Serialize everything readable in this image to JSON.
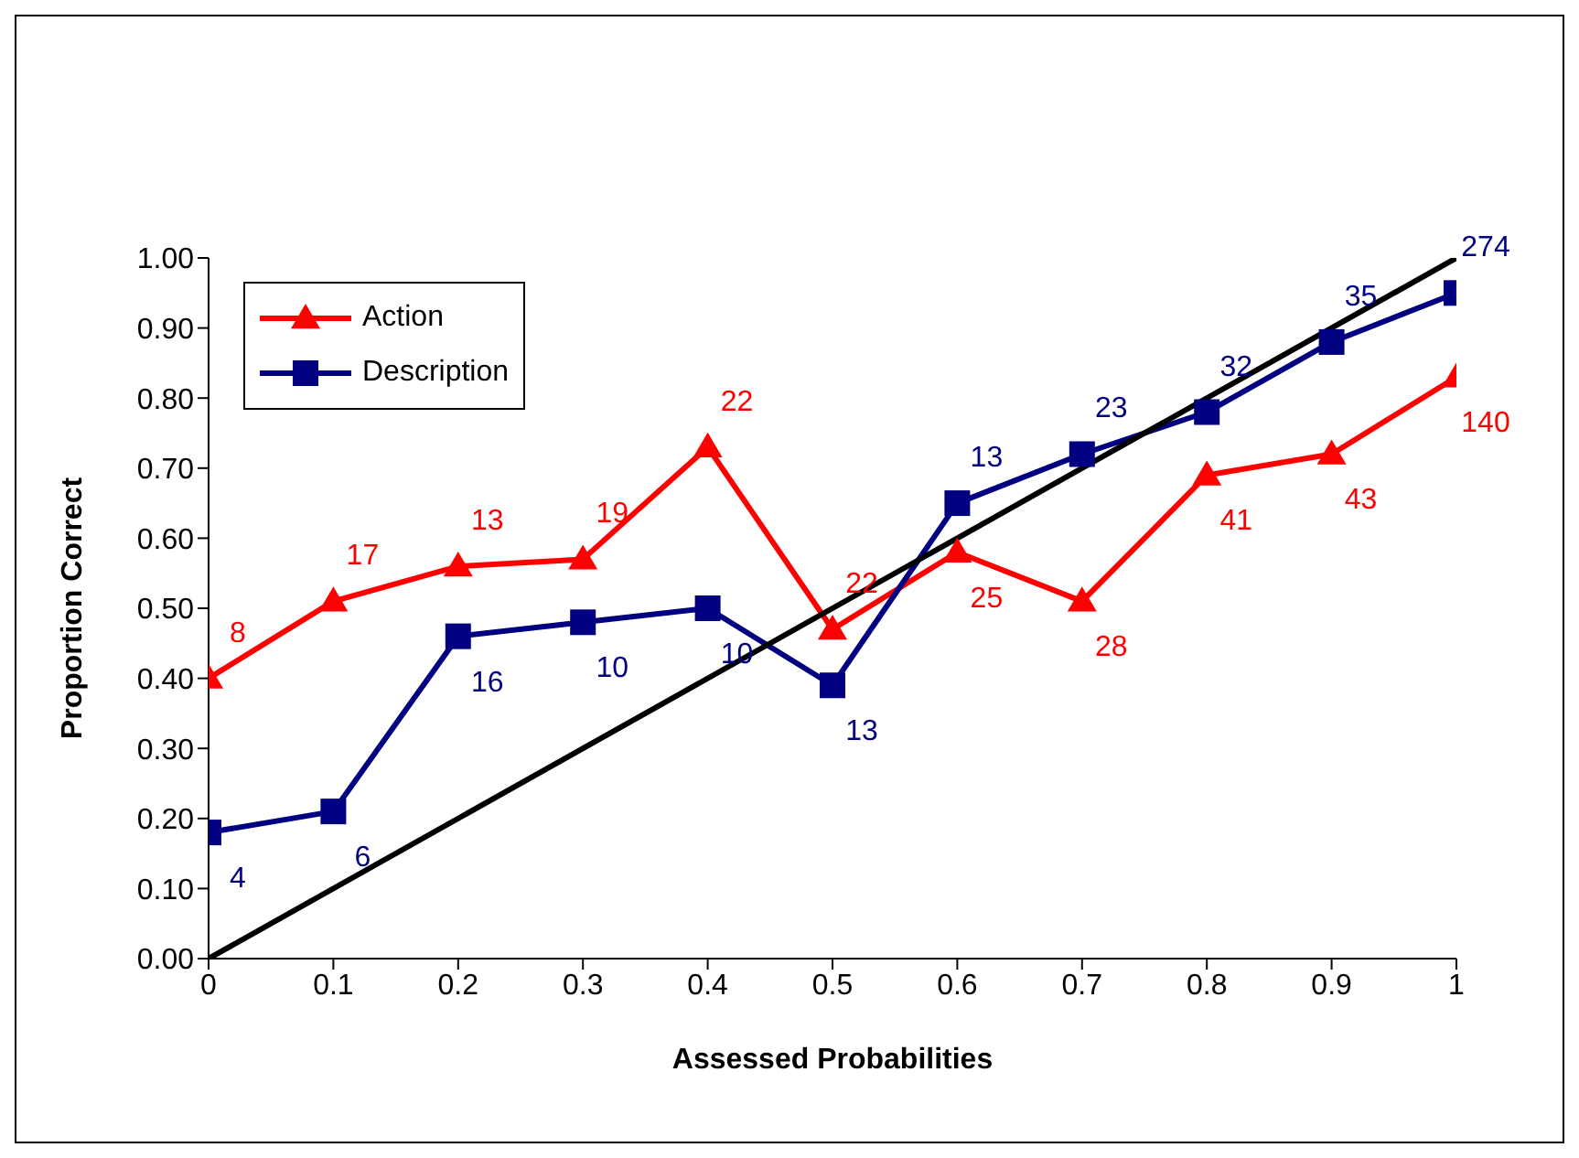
{
  "chart_data": {
    "type": "line",
    "xlabel": "Assessed Probabilities",
    "ylabel": "Proportion Correct",
    "xlim": [
      0,
      1
    ],
    "xticks": [
      0,
      0.1,
      0.2,
      0.3,
      0.4,
      0.5,
      0.6,
      0.7,
      0.8,
      0.9,
      1
    ],
    "ylim": [
      0,
      1
    ],
    "yticks": [
      {
        "value": 0,
        "label": "0.00"
      },
      {
        "value": 0.1,
        "label": "0.10"
      },
      {
        "value": 0.2,
        "label": "0.20"
      },
      {
        "value": 0.3,
        "label": "0.30"
      },
      {
        "value": 0.4,
        "label": "0.40"
      },
      {
        "value": 0.5,
        "label": "0.50"
      },
      {
        "value": 0.6,
        "label": "0.60"
      },
      {
        "value": 0.7,
        "label": "0.70"
      },
      {
        "value": 0.8,
        "label": "0.80"
      },
      {
        "value": 0.9,
        "label": "0.90"
      },
      {
        "value": 1,
        "label": "1.00"
      }
    ],
    "grid": false,
    "legend": "top left",
    "line_style": "solid",
    "series": [
      {
        "name": "Action",
        "color": "#ff0000",
        "marker": "triangle",
        "x": [
          0,
          0.1,
          0.2,
          0.3,
          0.4,
          0.5,
          0.6,
          0.7,
          0.8,
          0.9,
          1
        ],
        "values": [
          0.4,
          0.51,
          0.56,
          0.57,
          0.73,
          0.47,
          0.58,
          0.51,
          0.69,
          0.72,
          0.83
        ]
      },
      {
        "name": "Description",
        "color": "#000080",
        "marker": "square",
        "x": [
          0,
          0.1,
          0.2,
          0.3,
          0.4,
          0.5,
          0.6,
          0.7,
          0.8,
          0.9,
          1
        ],
        "values": [
          0.18,
          0.21,
          0.46,
          0.48,
          0.5,
          0.39,
          0.65,
          0.72,
          0.78,
          0.88,
          0.95
        ]
      },
      {
        "color": "#000000",
        "marker": "none",
        "x": [
          0,
          1
        ],
        "values": [
          0,
          1
        ]
      }
    ],
    "annotations": [
      {
        "text": "8",
        "x": 0,
        "y": 0.4
      },
      {
        "text": "17",
        "x": 0.1,
        "y": 0.51
      },
      {
        "text": "13",
        "x": 0.2,
        "y": 0.56
      },
      {
        "text": "19",
        "x": 0.3,
        "y": 0.57
      },
      {
        "text": "22",
        "x": 0.4,
        "y": 0.73
      },
      {
        "text": "22",
        "x": 0.5,
        "y": 0.47
      },
      {
        "text": "25",
        "x": 0.6,
        "y": 0.58
      },
      {
        "text": "28",
        "x": 0.7,
        "y": 0.51
      },
      {
        "text": "41",
        "x": 0.8,
        "y": 0.69
      },
      {
        "text": "43",
        "x": 0.9,
        "y": 0.72
      },
      {
        "text": "140",
        "x": 1,
        "y": 0.83
      },
      {
        "text": "4",
        "x": 0,
        "y": 0.18
      },
      {
        "text": "6",
        "x": 0.1,
        "y": 0.21
      },
      {
        "text": "16",
        "x": 0.2,
        "y": 0.46
      },
      {
        "text": "10",
        "x": 0.3,
        "y": 0.48
      },
      {
        "text": "10",
        "x": 0.4,
        "y": 0.5
      },
      {
        "text": "13",
        "x": 0.5,
        "y": 0.39
      },
      {
        "text": "13",
        "x": 0.6,
        "y": 0.65
      },
      {
        "text": "23",
        "x": 0.7,
        "y": 0.72
      },
      {
        "text": "32",
        "x": 0.8,
        "y": 0.78
      },
      {
        "text": "35",
        "x": 0.9,
        "y": 0.88
      },
      {
        "text": "274",
        "x": 1,
        "y": 0.95
      }
    ]
  }
}
